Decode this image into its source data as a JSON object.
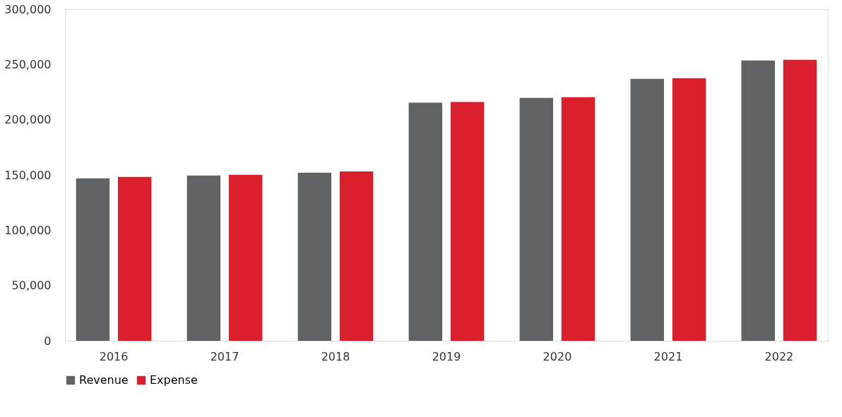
{
  "chart_data": {
    "type": "bar",
    "categories": [
      "2016",
      "2017",
      "2018",
      "2019",
      "2020",
      "2021",
      "2022"
    ],
    "series": [
      {
        "name": "Revenue",
        "color": "#5f6364",
        "values": [
          147000,
          149500,
          152000,
          215500,
          219800,
          237000,
          253500
        ]
      },
      {
        "name": "Expense",
        "color": "#d9202c",
        "values": [
          148200,
          150200,
          153200,
          216000,
          220400,
          237600,
          254200
        ]
      }
    ],
    "ylim": [
      0,
      300000
    ],
    "yticks": [
      {
        "value": 0,
        "label": "0"
      },
      {
        "value": 50000,
        "label": "50,000"
      },
      {
        "value": 100000,
        "label": "100,000"
      },
      {
        "value": 150000,
        "label": "150,000"
      },
      {
        "value": 200000,
        "label": "200,000"
      },
      {
        "value": 250000,
        "label": "250,000"
      },
      {
        "value": 300000,
        "label": "300,000"
      }
    ],
    "grid": false,
    "legend": "bottom"
  }
}
